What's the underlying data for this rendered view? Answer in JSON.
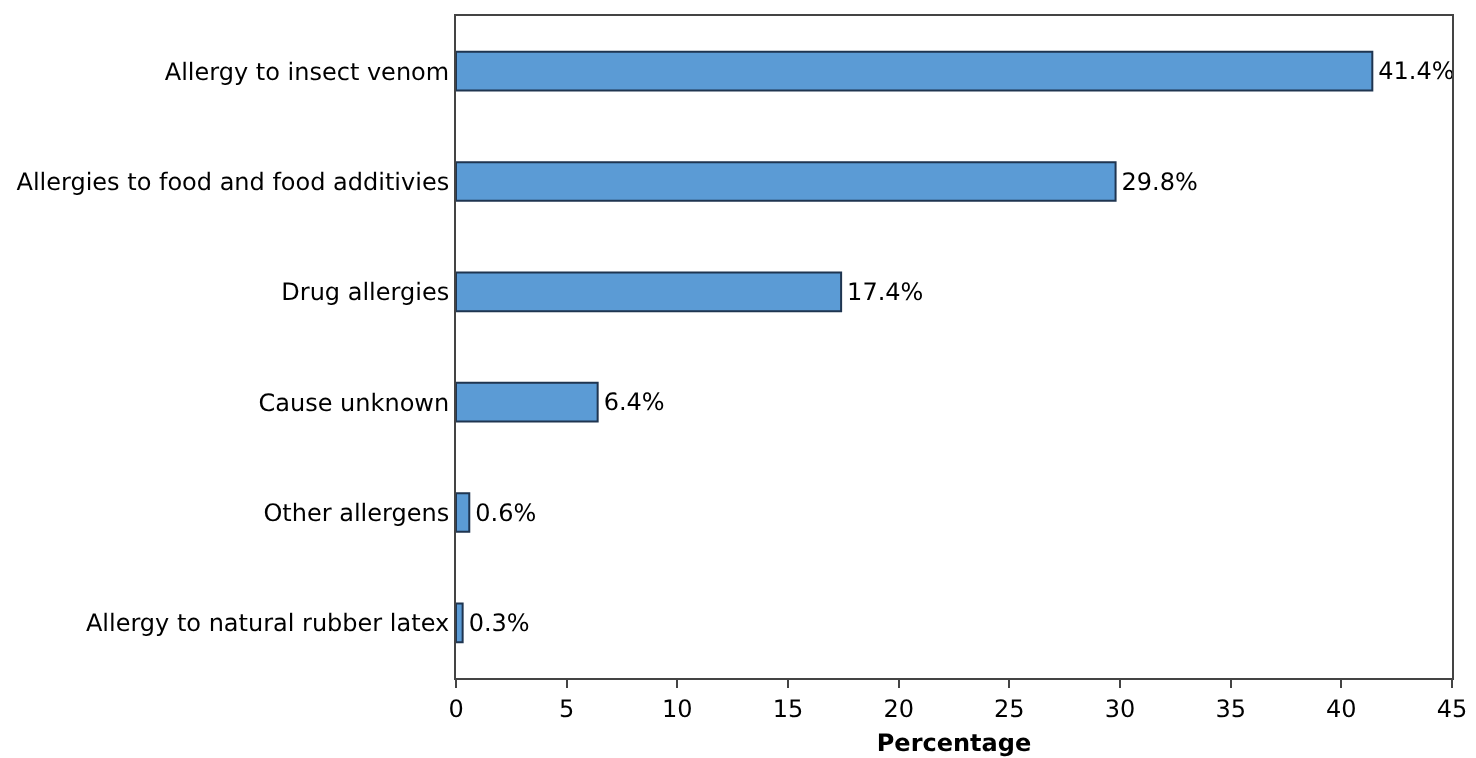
{
  "chart_data": {
    "type": "bar",
    "orientation": "horizontal",
    "xlabel": "Percentage",
    "categories": [
      "Allergy to insect venom",
      "Allergies to food and food additivies",
      "Drug allergies",
      "Cause unknown",
      "Other allergens",
      "Allergy to natural rubber latex"
    ],
    "values": [
      41.4,
      29.8,
      17.4,
      6.4,
      0.6,
      0.3
    ],
    "value_labels": [
      "41.4%",
      "29.8%",
      "17.4%",
      "6.4%",
      "0.6%",
      "0.3%"
    ],
    "color": "#5b9bd5",
    "xlim": [
      0,
      45
    ],
    "xticks": [
      0,
      5,
      10,
      15,
      20,
      25,
      30,
      35,
      40,
      45
    ],
    "grid": false
  }
}
